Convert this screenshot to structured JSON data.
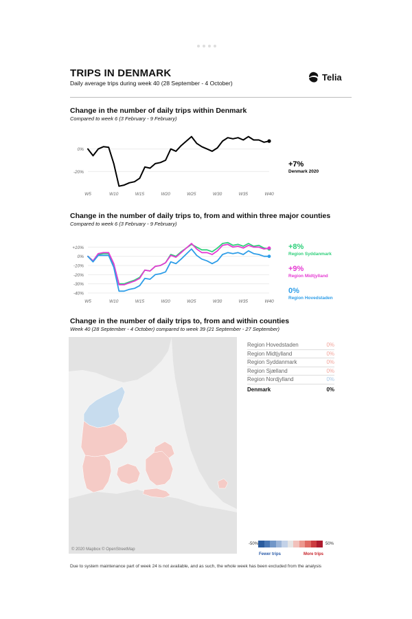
{
  "header": {
    "title": "TRIPS IN DENMARK",
    "subtitle": "Daily average trips during week 40 (28 September - 4 October)",
    "logo_text": "Telia"
  },
  "colors": {
    "black": "#000000",
    "syddanmark": "#2ecf7a",
    "midtjylland": "#e53ad2",
    "hovedstaden": "#2d9de8",
    "map_land": "#e3e3e3",
    "map_water": "#f4f4f4",
    "more_trips": "#f5cbc6",
    "fewer_trips": "#c7dcee"
  },
  "section1": {
    "title": "Change in the number of daily trips within Denmark",
    "subtitle": "Compared to week 6 (3 February - 9 February)",
    "annotation_value": "+7%",
    "annotation_label": "Denmark 2020"
  },
  "section2": {
    "title": "Change in the number of daily trips to, from and within three major counties",
    "subtitle": "Compared to week 6 (3 February - 9 February)",
    "annotations": [
      {
        "value": "+8%",
        "label": "Region Syddanmark"
      },
      {
        "value": "+9%",
        "label": "Region Midtjylland"
      },
      {
        "value": "0%",
        "label": "Region Hovedstaden"
      }
    ]
  },
  "section3": {
    "title": "Change in the number of daily trips to, from and within counties",
    "subtitle": "Week 40 (28 September - 4 October) compared to week 39 (21 September - 27 September)",
    "map_credit": "© 2020 Mapbox © OpenStreetMap",
    "regions": [
      {
        "name": "Region Hovedstaden",
        "value": "0%",
        "color": "#f2a39a"
      },
      {
        "name": "Region Midtjylland",
        "value": "0%",
        "color": "#f2a39a"
      },
      {
        "name": "Region Syddanmark",
        "value": "0%",
        "color": "#f2a39a"
      },
      {
        "name": "Region Sjælland",
        "value": "0%",
        "color": "#f2a39a"
      },
      {
        "name": "Region Nordjylland",
        "value": "0%",
        "color": "#a9c8e6"
      }
    ],
    "total": {
      "name": "Denmark",
      "value": "0%"
    },
    "legend": {
      "min_label": "-50%",
      "max_label": "50%",
      "fewer_label": "Fewer trips",
      "more_label": "More trips",
      "scale": [
        "#2b5c9e",
        "#4a78b5",
        "#7297c8",
        "#9db6d9",
        "#c3d2e8",
        "#e5e5e5",
        "#f2c1bb",
        "#ec978e",
        "#e06a63",
        "#cc3c40",
        "#ad1b2e"
      ]
    }
  },
  "footnote": "Due to system maintenance part of week 24 is not available, and as such, the whole week has been excluded from the analysis",
  "chart_data": [
    {
      "type": "line",
      "title": "Change in the number of daily trips within Denmark",
      "x_ticks": [
        "W5",
        "W10",
        "W15",
        "W20",
        "W25",
        "W30",
        "W35",
        "W40"
      ],
      "y_ticks": [
        "0%",
        "-20%"
      ],
      "ylim": [
        -35,
        15
      ],
      "xlim": [
        5,
        40
      ],
      "grid": true,
      "series": [
        {
          "name": "Denmark 2020",
          "color": "#000000",
          "x": [
            5,
            6,
            7,
            8,
            9,
            10,
            11,
            12,
            13,
            14,
            15,
            16,
            17,
            18,
            19,
            20,
            21,
            22,
            23,
            25,
            26,
            27,
            28,
            29,
            30,
            31,
            32,
            33,
            34,
            35,
            36,
            37,
            38,
            39,
            40
          ],
          "y": [
            0,
            -6,
            0,
            2,
            1.5,
            -13,
            -33,
            -32,
            -30,
            -29,
            -26,
            -16,
            -17,
            -13,
            -12,
            -10,
            0,
            -2,
            3,
            11,
            5,
            2,
            0,
            -2,
            1,
            7,
            10,
            9,
            10,
            8,
            11,
            8,
            8,
            6,
            7
          ]
        }
      ]
    },
    {
      "type": "line",
      "title": "Change in the number of daily trips to, from and within three major counties",
      "x_ticks": [
        "W5",
        "W10",
        "W15",
        "W20",
        "W25",
        "W30",
        "W35",
        "W40"
      ],
      "y_ticks": [
        "+10%",
        "0%",
        "-10%",
        "-20%",
        "-30%",
        "-40%"
      ],
      "ylim": [
        -43,
        14
      ],
      "xlim": [
        5,
        40
      ],
      "grid": true,
      "series": [
        {
          "name": "Region Syddanmark",
          "color": "#2ecf7a",
          "x": [
            5,
            6,
            7,
            8,
            9,
            10,
            11,
            12,
            13,
            14,
            15,
            16,
            17,
            18,
            19,
            20,
            21,
            22,
            23,
            25,
            26,
            27,
            28,
            29,
            30,
            31,
            32,
            33,
            34,
            35,
            36,
            37,
            38,
            39,
            40
          ],
          "y": [
            0,
            -5,
            2,
            3,
            3,
            -9,
            -30,
            -30,
            -28,
            -26,
            -23,
            -15,
            -16,
            -11,
            -10,
            -7,
            2,
            0,
            5,
            13,
            10,
            7,
            7,
            5,
            9,
            14,
            15,
            12,
            13,
            11,
            14,
            11,
            12,
            9,
            8
          ]
        },
        {
          "name": "Region Midtjylland",
          "color": "#e53ad2",
          "x": [
            5,
            6,
            7,
            8,
            9,
            10,
            11,
            12,
            13,
            14,
            15,
            16,
            17,
            18,
            19,
            20,
            21,
            22,
            23,
            25,
            26,
            27,
            28,
            29,
            30,
            31,
            32,
            33,
            34,
            35,
            36,
            37,
            38,
            39,
            40
          ],
          "y": [
            0,
            -5,
            3,
            4,
            4,
            -8,
            -31,
            -31,
            -29,
            -27,
            -24,
            -15,
            -16,
            -11,
            -10,
            -7,
            1,
            -1,
            4,
            14,
            8,
            4,
            4,
            2,
            6,
            12,
            13,
            10,
            11,
            9,
            12,
            10,
            10,
            8,
            9
          ]
        },
        {
          "name": "Region Hovedstaden",
          "color": "#2d9de8",
          "x": [
            5,
            6,
            7,
            8,
            9,
            10,
            11,
            12,
            13,
            14,
            15,
            16,
            17,
            18,
            19,
            20,
            21,
            22,
            23,
            25,
            26,
            27,
            28,
            29,
            30,
            31,
            32,
            33,
            34,
            35,
            36,
            37,
            38,
            39,
            40
          ],
          "y": [
            0,
            -6,
            1,
            1,
            1,
            -12,
            -38,
            -38,
            -36,
            -35,
            -32,
            -24,
            -25,
            -20,
            -19,
            -17,
            -6,
            -8,
            -3,
            8,
            1,
            -3,
            -5,
            -8,
            -5,
            2,
            4,
            3,
            4,
            2,
            6,
            3,
            2,
            0,
            0
          ]
        }
      ]
    }
  ]
}
